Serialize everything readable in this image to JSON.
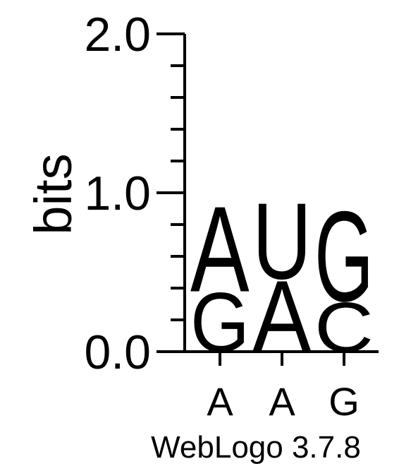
{
  "chart_data": {
    "type": "sequence-logo",
    "ylabel": "bits",
    "ylim": [
      0,
      2.0
    ],
    "y_ticks": [
      {
        "value": 0.0,
        "label": "0.0"
      },
      {
        "value": 1.0,
        "label": "1.0"
      },
      {
        "value": 2.0,
        "label": "2.0"
      }
    ],
    "y_minor_ticks": [
      0.2,
      0.4,
      0.6,
      0.8,
      1.2,
      1.4,
      1.6,
      1.8
    ],
    "positions": [
      {
        "label": "A",
        "stack": [
          {
            "letter": "G",
            "bits": 0.38
          },
          {
            "letter": "A",
            "bits": 0.55
          }
        ]
      },
      {
        "label": "A",
        "stack": [
          {
            "letter": "A",
            "bits": 0.46
          },
          {
            "letter": "U",
            "bits": 0.49
          }
        ]
      },
      {
        "label": "G",
        "stack": [
          {
            "letter": "C",
            "bits": 0.32
          },
          {
            "letter": "G",
            "bits": 0.58
          }
        ]
      }
    ],
    "colors": {
      "A": "#ff8c00",
      "U": "#ff8c00",
      "G": "#0000ff",
      "C": "#0000ff"
    },
    "footer": "WebLogo 3.7.8"
  }
}
